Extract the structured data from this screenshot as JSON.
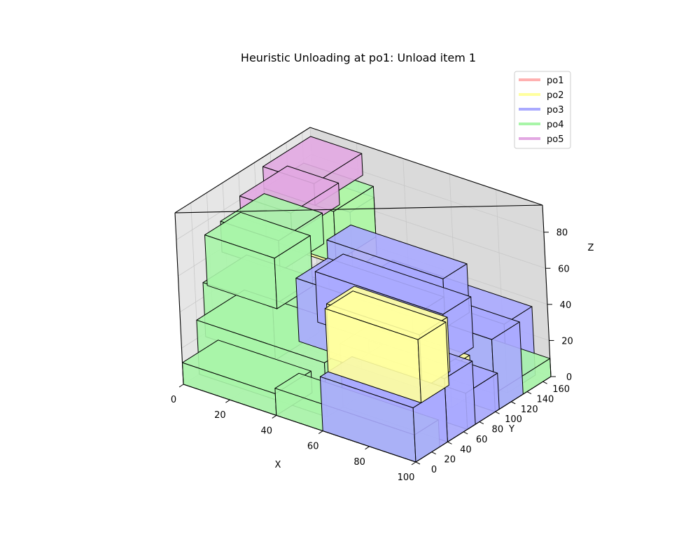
{
  "chart_data": {
    "type": "3d-box",
    "title": "Heuristic Unloading at po1: Unload item 1",
    "xlabel": "X",
    "ylabel": "Y",
    "zlabel": "Z",
    "xlim": [
      0,
      100
    ],
    "ylim": [
      0,
      170
    ],
    "zlim": [
      0,
      95
    ],
    "x_ticks": [
      0,
      20,
      40,
      60,
      80,
      100
    ],
    "y_ticks": [
      0,
      20,
      40,
      60,
      80,
      100,
      120,
      140,
      160
    ],
    "z_ticks": [
      0,
      20,
      40,
      60,
      80
    ],
    "grid": true,
    "legend_position": "top-right",
    "legend": [
      {
        "label": "po1",
        "color": "#ffb0b0"
      },
      {
        "label": "po2",
        "color": "#ffff9e"
      },
      {
        "label": "po3",
        "color": "#aaaaff"
      },
      {
        "label": "po4",
        "color": "#a8f5a8"
      },
      {
        "label": "po5",
        "color": "#e2a8e2"
      }
    ],
    "boxes": [
      {
        "group": "po5",
        "x": [
          0,
          22
        ],
        "y": [
          110,
          170
        ],
        "z": [
          78,
          90
        ]
      },
      {
        "group": "po5",
        "x": [
          0,
          22
        ],
        "y": [
          80,
          140
        ],
        "z": [
          70,
          82
        ]
      },
      {
        "group": "po4",
        "x": [
          0,
          30
        ],
        "y": [
          110,
          160
        ],
        "z": [
          50,
          78
        ]
      },
      {
        "group": "po2",
        "x": [
          0,
          30
        ],
        "y": [
          130,
          160
        ],
        "z": [
          40,
          72
        ]
      },
      {
        "group": "po4",
        "x": [
          0,
          25
        ],
        "y": [
          55,
          110
        ],
        "z": [
          58,
          75
        ]
      },
      {
        "group": "po4",
        "x": [
          0,
          30
        ],
        "y": [
          35,
          80
        ],
        "z": [
          45,
          73
        ]
      },
      {
        "group": "po4",
        "x": [
          0,
          30
        ],
        "y": [
          30,
          85
        ],
        "z": [
          18,
          48
        ]
      },
      {
        "group": "po4",
        "x": [
          0,
          55
        ],
        "y": [
          20,
          80
        ],
        "z": [
          0,
          30
        ]
      },
      {
        "group": "po4",
        "x": [
          0,
          40
        ],
        "y": [
          0,
          45
        ],
        "z": [
          0,
          12
        ]
      },
      {
        "group": "po4",
        "x": [
          40,
          100
        ],
        "y": [
          100,
          170
        ],
        "z": [
          0,
          10
        ]
      },
      {
        "group": "po3",
        "x": [
          35,
          95
        ],
        "y": [
          130,
          165
        ],
        "z": [
          0,
          38
        ]
      },
      {
        "group": "po3",
        "x": [
          40,
          100
        ],
        "y": [
          100,
          135
        ],
        "z": [
          0,
          40
        ]
      },
      {
        "group": "po3",
        "x": [
          30,
          80
        ],
        "y": [
          100,
          130
        ],
        "z": [
          38,
          65
        ]
      },
      {
        "group": "po3",
        "x": [
          35,
          90
        ],
        "y": [
          70,
          105
        ],
        "z": [
          30,
          58
        ]
      },
      {
        "group": "po3",
        "x": [
          30,
          80
        ],
        "y": [
          60,
          100
        ],
        "z": [
          20,
          55
        ]
      },
      {
        "group": "po3",
        "x": [
          55,
          100
        ],
        "y": [
          65,
          105
        ],
        "z": [
          0,
          20
        ]
      },
      {
        "group": "po2",
        "x": [
          55,
          90
        ],
        "y": [
          75,
          100
        ],
        "z": [
          5,
          27
        ]
      },
      {
        "group": "po3",
        "x": [
          60,
          100
        ],
        "y": [
          0,
          40
        ],
        "z": [
          0,
          30
        ]
      },
      {
        "group": "po3",
        "x": [
          55,
          100
        ],
        "y": [
          40,
          75
        ],
        "z": [
          0,
          35
        ]
      },
      {
        "group": "po2",
        "x": [
          50,
          90
        ],
        "y": [
          40,
          75
        ],
        "z": [
          25,
          55
        ]
      },
      {
        "group": "po2",
        "x": [
          60,
          100
        ],
        "y": [
          10,
          45
        ],
        "z": [
          30,
          65
        ]
      },
      {
        "group": "po4",
        "x": [
          40,
          100
        ],
        "y": [
          0,
          30
        ],
        "z": [
          0,
          15
        ]
      }
    ]
  }
}
